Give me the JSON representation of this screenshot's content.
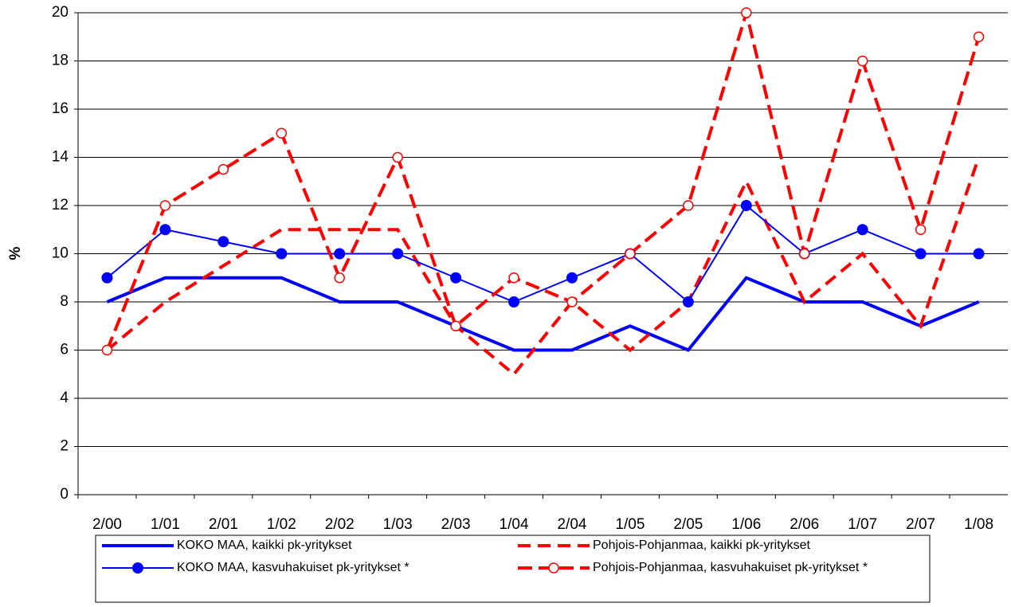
{
  "chart_data": {
    "type": "line",
    "y_label": "%",
    "categories": [
      "2/00",
      "1/01",
      "2/01",
      "1/02",
      "2/02",
      "1/03",
      "2/03",
      "1/04",
      "2/04",
      "1/05",
      "2/05",
      "1/06",
      "2/06",
      "1/07",
      "2/07",
      "1/08"
    ],
    "ylim": [
      0,
      20
    ],
    "yticks": [
      0,
      2,
      4,
      6,
      8,
      10,
      12,
      14,
      16,
      18,
      20
    ],
    "grid": true,
    "series": [
      {
        "name": "KOKO MAA, kaikki pk-yritykset",
        "color": "#0000ff",
        "dashed": false,
        "marker": "none",
        "values": [
          8,
          9,
          9,
          9,
          8,
          8,
          7,
          6,
          6,
          7,
          6,
          9,
          8,
          8,
          7,
          8
        ]
      },
      {
        "name": "Pohjois-Pohjanmaa, kaikki pk-yritykset",
        "color": "#ff0000",
        "dashed": true,
        "marker": "none",
        "values": [
          6,
          8,
          9.5,
          11,
          11,
          11,
          7,
          5,
          8,
          6,
          8,
          13,
          8,
          10,
          7,
          14
        ]
      },
      {
        "name": "KOKO MAA, kasvuhakuiset pk-yritykset *",
        "color": "#0000ff",
        "dashed": false,
        "marker": "filled",
        "values": [
          9,
          11,
          10.5,
          10,
          10,
          10,
          9,
          8,
          9,
          10,
          8,
          12,
          10,
          11,
          10,
          10
        ]
      },
      {
        "name": "Pohjois-Pohjanmaa, kasvuhakuiset pk-yritykset *",
        "color": "#ff0000",
        "dashed": true,
        "marker": "open",
        "values": [
          6,
          12,
          13.5,
          15,
          9,
          14,
          7,
          9,
          8,
          10,
          12,
          20,
          10,
          18,
          11,
          19
        ]
      }
    ]
  }
}
